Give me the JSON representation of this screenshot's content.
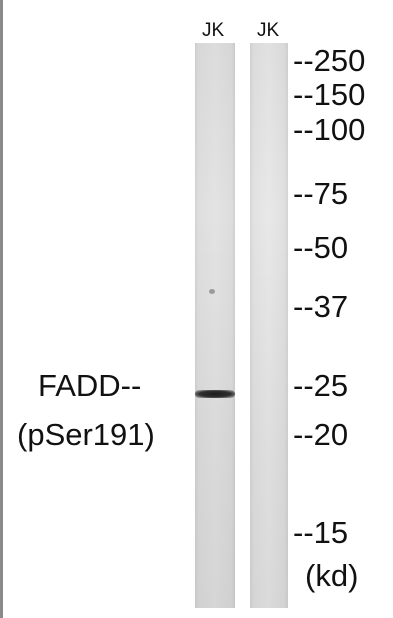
{
  "lanes": [
    {
      "label": "JK"
    },
    {
      "label": "JK"
    }
  ],
  "protein_label": {
    "line1": "FADD--",
    "line2": "(pSer191)"
  },
  "markers": [
    "--250",
    "--150",
    "--100",
    "--75",
    "--50",
    "--37",
    "--25",
    "--20",
    "--15"
  ],
  "unit": "(kd)",
  "colors": {
    "background": "#ffffff",
    "membrane": "#e2e2e2",
    "band": "#1c1c1c",
    "text": "#111111"
  }
}
